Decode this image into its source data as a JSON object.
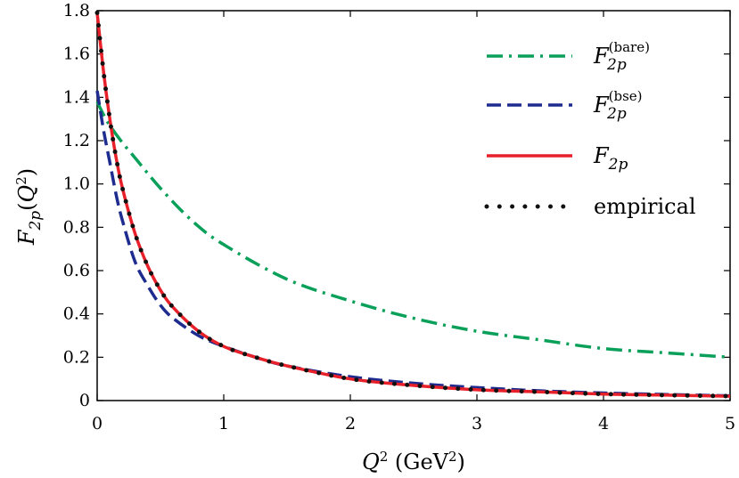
{
  "chart_data": {
    "type": "line",
    "xlabel": "Q² (GeV²)",
    "ylabel": "F2p(Q²)",
    "xlim": [
      0,
      5
    ],
    "ylim": [
      0,
      1.8
    ],
    "x_ticks": [
      "0",
      "1",
      "2",
      "3",
      "4",
      "5"
    ],
    "y_ticks": [
      "0",
      "0.2",
      "0.4",
      "0.6",
      "0.8",
      "1.0",
      "1.2",
      "1.4",
      "1.6",
      "1.8"
    ],
    "legend_position": "top-right",
    "series": [
      {
        "name": "F2p(bare)",
        "style": "dashdot",
        "color": "#0aa05a",
        "x": [
          0,
          0.05,
          0.1,
          0.2,
          0.3,
          0.5,
          0.75,
          1.0,
          1.5,
          2.0,
          2.5,
          3.0,
          3.5,
          4.0,
          4.5,
          5.0
        ],
        "y": [
          1.38,
          1.32,
          1.27,
          1.19,
          1.12,
          0.98,
          0.83,
          0.72,
          0.56,
          0.46,
          0.38,
          0.32,
          0.28,
          0.24,
          0.22,
          0.2
        ]
      },
      {
        "name": "F2p(bse)",
        "style": "dashed",
        "color": "#1f2c8f",
        "x": [
          0,
          0.05,
          0.1,
          0.15,
          0.2,
          0.3,
          0.4,
          0.5,
          0.6,
          0.8,
          1.0,
          1.25,
          1.5,
          2.0,
          2.5,
          3.0,
          3.5,
          4.0,
          4.5,
          5.0
        ],
        "y": [
          1.43,
          1.25,
          1.1,
          0.95,
          0.83,
          0.64,
          0.53,
          0.44,
          0.38,
          0.3,
          0.25,
          0.2,
          0.16,
          0.11,
          0.08,
          0.06,
          0.045,
          0.035,
          0.028,
          0.022
        ]
      },
      {
        "name": "F2p",
        "style": "solid",
        "color": "#e8202a",
        "x": [
          0,
          0.05,
          0.1,
          0.15,
          0.2,
          0.3,
          0.4,
          0.5,
          0.6,
          0.8,
          1.0,
          1.25,
          1.5,
          2.0,
          2.5,
          3.0,
          3.5,
          4.0,
          4.5,
          5.0
        ],
        "y": [
          1.79,
          1.52,
          1.3,
          1.12,
          0.98,
          0.77,
          0.62,
          0.51,
          0.43,
          0.32,
          0.25,
          0.2,
          0.16,
          0.1,
          0.07,
          0.05,
          0.04,
          0.03,
          0.025,
          0.02
        ]
      },
      {
        "name": "empirical",
        "style": "dotted",
        "color": "#111111",
        "x": [
          0,
          0.05,
          0.1,
          0.15,
          0.2,
          0.3,
          0.4,
          0.5,
          0.6,
          0.8,
          1.0,
          1.25,
          1.5,
          2.0,
          2.5,
          3.0,
          3.5,
          4.0,
          4.5,
          5.0
        ],
        "y": [
          1.79,
          1.52,
          1.3,
          1.12,
          0.98,
          0.77,
          0.62,
          0.51,
          0.43,
          0.32,
          0.25,
          0.2,
          0.16,
          0.1,
          0.07,
          0.05,
          0.04,
          0.03,
          0.025,
          0.02
        ]
      }
    ]
  }
}
